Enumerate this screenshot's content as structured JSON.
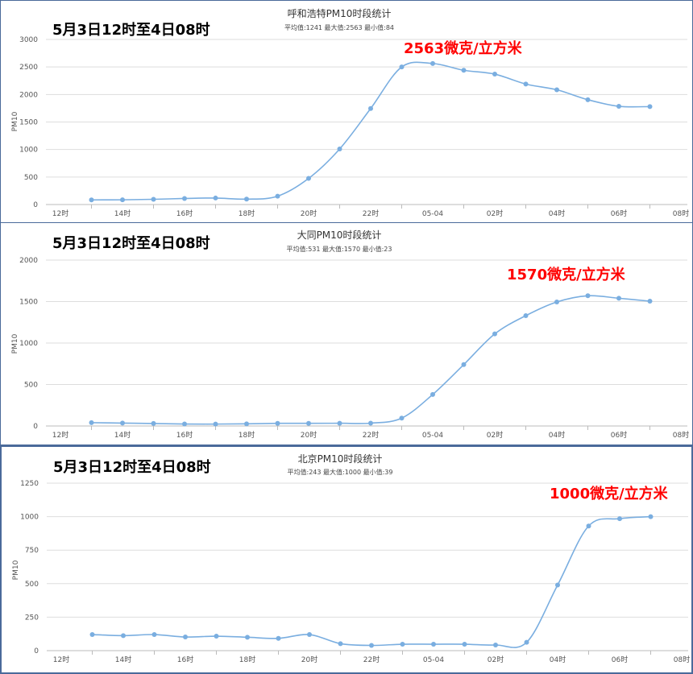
{
  "chart_data": [
    {
      "type": "line",
      "title": "呼和浩特PM10时段统计",
      "subtitle": "平均值:1241 最大值:2563 最小值:84",
      "ylabel": "PM10",
      "range_label": "5月3日12时至4日08时",
      "peak_label": "2563微克/立方米",
      "ylim": [
        0,
        3000
      ],
      "yticks": [
        "0",
        "500",
        "1000",
        "1500",
        "2000",
        "2500",
        "3000"
      ],
      "xtick_labels": [
        "12时",
        "14时",
        "16时",
        "18时",
        "20时",
        "22时",
        "05-04",
        "02时",
        "04时",
        "06时",
        "08时"
      ],
      "x": [
        "13时",
        "14时",
        "15时",
        "16时",
        "17时",
        "18时",
        "19时",
        "20时",
        "21时",
        "22时",
        "23时",
        "00时",
        "01时",
        "02时",
        "03时",
        "04时",
        "05时",
        "06时",
        "07时"
      ],
      "series": [
        {
          "values": [
            84,
            86,
            95,
            110,
            118,
            98,
            152,
            475,
            1010,
            1745,
            2500,
            2563,
            2440,
            2370,
            2190,
            2085,
            1905,
            1785,
            1780
          ],
          "color": "#7aaee0"
        }
      ]
    },
    {
      "type": "line",
      "title": "大同PM10时段统计",
      "subtitle": "平均值:531 最大值:1570 最小值:23",
      "ylabel": "PM10",
      "range_label": "5月3日12时至4日08时",
      "peak_label": "1570微克/立方米",
      "ylim": [
        0,
        2000
      ],
      "yticks": [
        "0",
        "500",
        "1000",
        "1500",
        "2000"
      ],
      "xtick_labels": [
        "12时",
        "14时",
        "16时",
        "18时",
        "20时",
        "22时",
        "05-04",
        "02时",
        "04时",
        "06时",
        "08时"
      ],
      "x": [
        "13时",
        "14时",
        "15时",
        "16时",
        "17时",
        "18时",
        "19时",
        "20时",
        "21时",
        "22时",
        "23时",
        "00时",
        "01时",
        "02时",
        "03时",
        "04时",
        "05时",
        "06时",
        "07时"
      ],
      "series": [
        {
          "values": [
            40,
            35,
            30,
            24,
            23,
            26,
            32,
            32,
            33,
            34,
            95,
            380,
            740,
            1110,
            1330,
            1495,
            1570,
            1540,
            1505
          ],
          "color": "#7aaee0"
        }
      ]
    },
    {
      "type": "line",
      "title": "北京PM10时段统计",
      "subtitle": "平均值:243 最大值:1000 最小值:39",
      "ylabel": "PM10",
      "range_label": "5月3日12时至4日08时",
      "peak_label": "1000微克/立方米",
      "ylim": [
        0,
        1250
      ],
      "yticks": [
        "0",
        "250",
        "500",
        "750",
        "1000",
        "1250"
      ],
      "xtick_labels": [
        "12时",
        "14时",
        "16时",
        "18时",
        "20时",
        "22时",
        "05-04",
        "02时",
        "04时",
        "06时",
        "08时"
      ],
      "x": [
        "13时",
        "14时",
        "15时",
        "16时",
        "17时",
        "18时",
        "19时",
        "20时",
        "21时",
        "22时",
        "23时",
        "00时",
        "01时",
        "02时",
        "03时",
        "04时",
        "05时",
        "06时",
        "07时"
      ],
      "series": [
        {
          "values": [
            120,
            112,
            120,
            102,
            108,
            100,
            92,
            120,
            52,
            39,
            48,
            48,
            48,
            42,
            62,
            490,
            930,
            985,
            1000
          ],
          "color": "#7aaee0"
        }
      ]
    }
  ]
}
